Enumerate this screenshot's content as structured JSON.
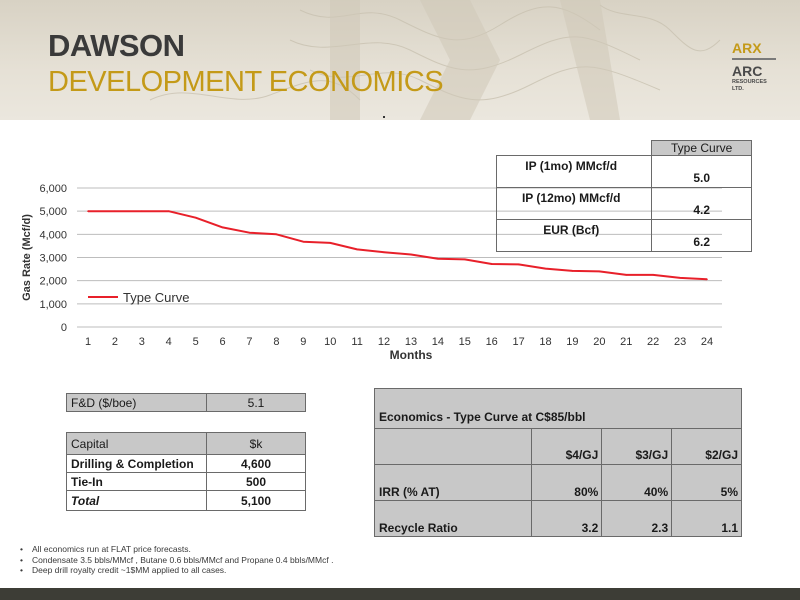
{
  "header": {
    "title_line1": "DAWSON",
    "title_line2": "DEVELOPMENT ECONOMICS",
    "logo_text_1": "ARX",
    "logo_text_2": "ARC",
    "logo_text_3": "RESOURCES",
    "logo_text_4": "LTD.",
    "colors": {
      "accent": "#c49a18",
      "title": "#3a3a3a"
    }
  },
  "type_curve_table": {
    "header": "Type Curve",
    "rows": [
      {
        "label": "IP (1mo) MMcf/d",
        "value": "5.0"
      },
      {
        "label": "IP (12mo) MMcf/d",
        "value": "4.2"
      },
      {
        "label": "EUR (Bcf)",
        "value": "6.2"
      }
    ]
  },
  "chart_data": {
    "type": "line",
    "title": "",
    "xlabel": "Months",
    "ylabel": "Gas Rate (Mcf/d)",
    "x": [
      1,
      2,
      3,
      4,
      5,
      6,
      7,
      8,
      9,
      10,
      11,
      12,
      13,
      14,
      15,
      16,
      17,
      18,
      19,
      20,
      21,
      22,
      23,
      24
    ],
    "x_tick_labels": [
      "1",
      "2",
      "3",
      "4",
      "5",
      "6",
      "7",
      "8",
      "9",
      "10",
      "11",
      "12",
      "13",
      "14",
      "15",
      "16",
      "17",
      "18",
      "19",
      "20",
      "21",
      "22",
      "23",
      "24"
    ],
    "y_tick_labels": [
      "0",
      "1,000",
      "2,000",
      "3,000",
      "4,000",
      "5,000",
      "6,000"
    ],
    "y_ticks": [
      0,
      1000,
      2000,
      3000,
      4000,
      5000,
      6000
    ],
    "ylim": [
      0,
      6000
    ],
    "grid": true,
    "legend_position": "bottom-left",
    "series": [
      {
        "name": "Type Curve",
        "color": "#e8202a",
        "values": [
          5000,
          5000,
          5000,
          5000,
          4720,
          4300,
          4070,
          4000,
          3680,
          3630,
          3350,
          3230,
          3130,
          2950,
          2920,
          2720,
          2700,
          2520,
          2420,
          2400,
          2250,
          2250,
          2120,
          2060
        ]
      }
    ]
  },
  "fd_table": {
    "label": "F&D ($/boe)",
    "value": "5.1"
  },
  "capital_table": {
    "header_label": "Capital",
    "header_value": "$k",
    "rows": [
      {
        "label": "Drilling & Completion",
        "value": "4,600"
      },
      {
        "label": "Tie-In",
        "value": "500"
      }
    ],
    "total_label": "Total",
    "total_value": "5,100"
  },
  "economics_table": {
    "title": "Economics - Type Curve at C$85/bbl",
    "columns": [
      "$4/GJ",
      "$3/GJ",
      "$2/GJ"
    ],
    "rows": [
      {
        "label": "IRR (% AT)",
        "values": [
          "80%",
          "40%",
          "5%"
        ]
      },
      {
        "label": "Recycle Ratio",
        "values": [
          "3.2",
          "2.3",
          "1.1"
        ]
      }
    ]
  },
  "footnotes": [
    "All economics run at FLAT price forecasts.",
    "Condensate 3.5 bbls/MMcf , Butane 0.6 bbls/MMcf and Propane 0.4 bbls/MMcf .",
    "Deep drill royalty credit ~1$MM applied to all cases."
  ],
  "footnote_bullet": "•"
}
